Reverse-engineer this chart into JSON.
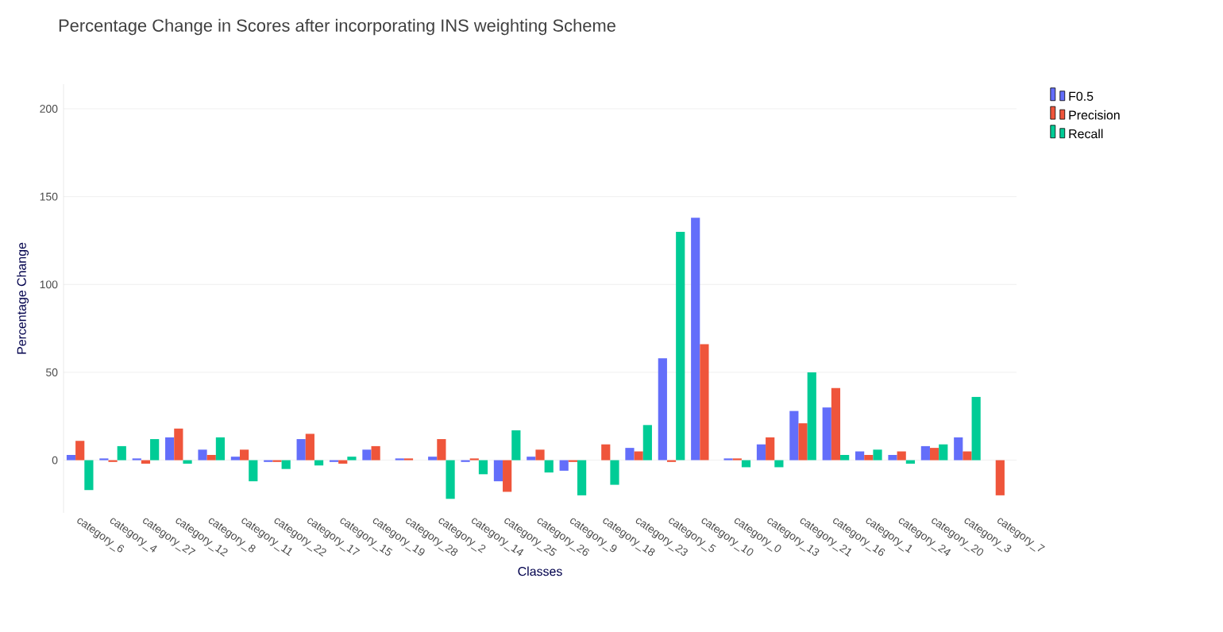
{
  "chart_data": {
    "type": "bar",
    "title": "Percentage Change in Scores after incorporating INS weighting Scheme",
    "xlabel": "Classes",
    "ylabel": "Percentage Change",
    "categories": [
      "category_6",
      "category_4",
      "category_27",
      "category_12",
      "category_8",
      "category_11",
      "category_22",
      "category_17",
      "category_15",
      "category_19",
      "category_28",
      "category_2",
      "category_14",
      "category_25",
      "category_26",
      "category_9",
      "category_18",
      "category_23",
      "category_5",
      "category_10",
      "category_0",
      "category_13",
      "category_21",
      "category_16",
      "category_1",
      "category_24",
      "category_20",
      "category_3",
      "category_7"
    ],
    "series": [
      {
        "name": "F0.5",
        "color": "#636efa",
        "values": [
          3,
          1,
          1,
          13,
          6,
          2,
          -1,
          12,
          -1,
          6,
          1,
          2,
          -1,
          -12,
          2,
          -6,
          0,
          7,
          58,
          138,
          1,
          9,
          28,
          30,
          5,
          3,
          8,
          13,
          null
        ]
      },
      {
        "name": "Precision",
        "color": "#ef553b",
        "values": [
          11,
          -1,
          -2,
          18,
          3,
          6,
          -1,
          15,
          -2,
          8,
          1,
          12,
          1,
          -18,
          6,
          -1,
          9,
          5,
          -1,
          66,
          1,
          13,
          21,
          41,
          3,
          5,
          7,
          5,
          -20
        ]
      },
      {
        "name": "Recall",
        "color": "#00cc96",
        "values": [
          -17,
          8,
          12,
          -2,
          13,
          -12,
          -5,
          -3,
          2,
          0,
          0,
          -22,
          -8,
          17,
          -7,
          -20,
          -14,
          20,
          130,
          null,
          -4,
          -4,
          50,
          3,
          6,
          -2,
          9,
          36,
          null
        ]
      }
    ],
    "ylim": [
      -30,
      214
    ],
    "yticks": [
      0,
      50,
      100,
      150,
      200
    ],
    "grid": "y",
    "legend": "top right"
  }
}
